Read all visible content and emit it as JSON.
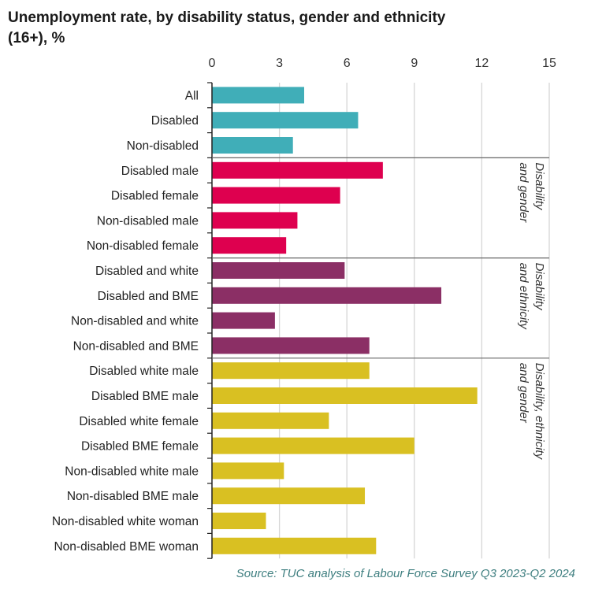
{
  "chart_data": {
    "type": "bar",
    "orientation": "horizontal",
    "title": "Unemployment rate, by disability status, gender and ethnicity (16+), %",
    "xlabel": "",
    "ylabel": "",
    "xlim": [
      0,
      15
    ],
    "xticks": [
      "0",
      "3",
      "6",
      "9",
      "12",
      "15"
    ],
    "grid": true,
    "categories": [
      "All",
      "Disabled",
      "Non-disabled",
      "Disabled male",
      "Disabled female",
      "Non-disabled male",
      "Non-disabled female",
      "Disabled and white",
      "Disabled and BME",
      "Non-disabled and white",
      "Non-disabled and BME",
      "Disabled white male",
      "Disabled BME male",
      "Disabled white female",
      "Disabled BME female",
      "Non-disabled white male",
      "Non-disabled BME male",
      "Non-disabled white woman",
      "Non-disabled BME woman"
    ],
    "values": [
      4.1,
      6.5,
      3.6,
      7.6,
      5.7,
      3.8,
      3.3,
      5.9,
      10.2,
      2.8,
      7.0,
      7.0,
      11.8,
      5.2,
      9.0,
      3.2,
      6.8,
      2.4,
      7.3
    ],
    "groups": [
      {
        "label": "",
        "start": 0,
        "end": 2,
        "color": "#40AEB8"
      },
      {
        "label": "Disability and gender",
        "lines": [
          "Disability",
          "and gender"
        ],
        "start": 3,
        "end": 6,
        "color": "#DE004F"
      },
      {
        "label": "Disability and ethnicity",
        "lines": [
          "Disability",
          "and ethnicity"
        ],
        "start": 7,
        "end": 10,
        "color": "#8B2F65"
      },
      {
        "label": "Disability, ethnicity and gender",
        "lines": [
          "Disability, ethnicity",
          "and gender"
        ],
        "start": 11,
        "end": 18,
        "color": "#D9C022"
      }
    ],
    "source": "Source: TUC analysis of Labour Force Survey Q3 2023-Q2 2024"
  }
}
